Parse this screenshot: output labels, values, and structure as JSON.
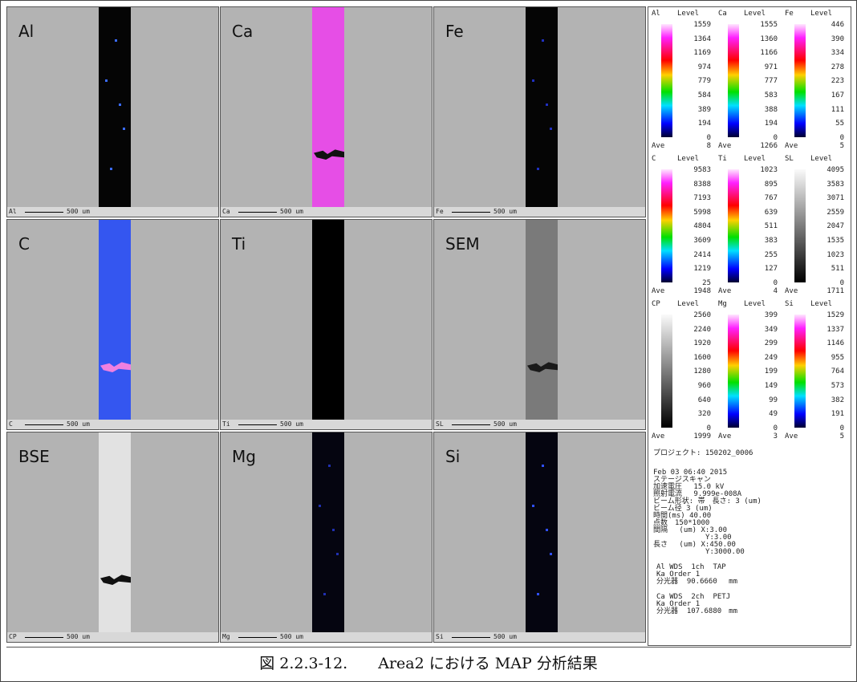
{
  "panels": [
    {
      "label": "Al",
      "scale_label": "Al",
      "scale": "500 um",
      "stripe": "#050505",
      "dots": "#3a6cff"
    },
    {
      "label": "Ca",
      "scale_label": "Ca",
      "scale": "500 um",
      "stripe": "#e64ee6",
      "patch": "#111111"
    },
    {
      "label": "Fe",
      "scale_label": "Fe",
      "scale": "500 um",
      "stripe": "#050505",
      "dots": "#2030c0"
    },
    {
      "label": "C",
      "scale_label": "C",
      "scale": "500 um",
      "stripe": "#3456f0",
      "patch": "#f080e0"
    },
    {
      "label": "Ti",
      "scale_label": "Ti",
      "scale": "500 um",
      "stripe": "#000000"
    },
    {
      "label": "SEM",
      "scale_label": "SL",
      "scale": "500 um",
      "stripe": "#7a7a7a",
      "patch": "#1a1a1a"
    },
    {
      "label": "BSE",
      "scale_label": "CP",
      "scale": "500 um",
      "stripe": "#e2e2e2",
      "patch": "#111111"
    },
    {
      "label": "Mg",
      "scale_label": "Mg",
      "scale": "500 um",
      "stripe": "#050510",
      "dots": "#2030b0"
    },
    {
      "label": "Si",
      "scale_label": "Si",
      "scale": "500 um",
      "stripe": "#050510",
      "dots": "#3050ff"
    }
  ],
  "legends": [
    {
      "element": "Al",
      "header": "Level",
      "scale": "rainbow",
      "levels": [
        1559,
        1364,
        1169,
        974,
        779,
        584,
        389,
        194,
        0
      ],
      "ave_label": "Ave",
      "ave": 8
    },
    {
      "element": "Ca",
      "header": "Level",
      "scale": "rainbow",
      "levels": [
        1555,
        1360,
        1166,
        971,
        777,
        583,
        388,
        194,
        0
      ],
      "ave_label": "Ave",
      "ave": 1266
    },
    {
      "element": "Fe",
      "header": "Level",
      "scale": "rainbow",
      "levels": [
        446,
        390,
        334,
        278,
        223,
        167,
        111,
        55,
        0
      ],
      "ave_label": "Ave",
      "ave": 5
    },
    {
      "element": "C",
      "header": "Level",
      "scale": "rainbow",
      "levels": [
        9583,
        8388,
        7193,
        5998,
        4804,
        3609,
        2414,
        1219,
        25
      ],
      "ave_label": "Ave",
      "ave": 1948
    },
    {
      "element": "Ti",
      "header": "Level",
      "scale": "rainbow",
      "levels": [
        1023,
        895,
        767,
        639,
        511,
        383,
        255,
        127,
        0
      ],
      "ave_label": "Ave",
      "ave": 4
    },
    {
      "element": "SL",
      "header": "Level",
      "scale": "gray",
      "levels": [
        4095,
        3583,
        3071,
        2559,
        2047,
        1535,
        1023,
        511,
        0
      ],
      "ave_label": "Ave",
      "ave": 1711
    },
    {
      "element": "CP",
      "header": "Level",
      "scale": "gray",
      "levels": [
        2560,
        2240,
        1920,
        1600,
        1280,
        960,
        640,
        320,
        0
      ],
      "ave_label": "Ave",
      "ave": 1999
    },
    {
      "element": "Mg",
      "header": "Level",
      "scale": "rainbow",
      "levels": [
        399,
        349,
        299,
        249,
        199,
        149,
        99,
        49,
        0
      ],
      "ave_label": "Ave",
      "ave": 3
    },
    {
      "element": "Si",
      "header": "Level",
      "scale": "rainbow",
      "levels": [
        1529,
        1337,
        1146,
        955,
        764,
        573,
        382,
        191,
        0
      ],
      "ave_label": "Ave",
      "ave": 5
    }
  ],
  "info": {
    "project": "プロジェクト: 150202_0006",
    "scan": [
      "Feb 03 06:40 2015",
      "ステージスキャン",
      "加速電圧　 15.0 kV",
      "照射電流　 9.999e-008A",
      "ビーム形状: 帯　長さ: 3 (um)",
      "ビーム径 3 (um)",
      "時間(ms) 40.00",
      "点数　150*1000",
      "間隔　 (um) X:3.00",
      "            Y:3.00",
      "長さ　 (um) X:450.00",
      "            Y:3000.00"
    ],
    "spectrometer1": [
      "Al WDS  1ch  TAP",
      "Ka Order 1",
      "分光器  90.6660　 mm"
    ],
    "spectrometer2": [
      "Ca WDS  2ch  PETJ",
      "Ka Order 1",
      "分光器  107.6880　mm"
    ]
  },
  "caption": "図 2.2.3-12.　　Area2 における MAP 分析結果"
}
